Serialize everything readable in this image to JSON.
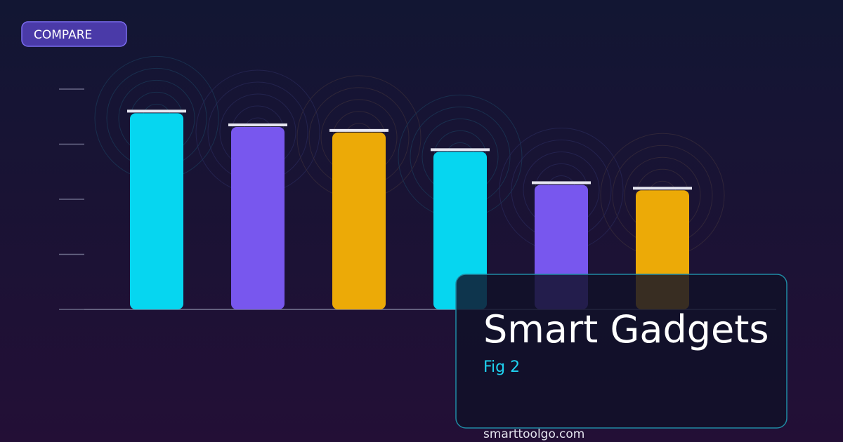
{
  "badge": "COMPARE",
  "chart_data": {
    "type": "bar",
    "title": "Smart Gadgets",
    "subtitle": "Fig 2",
    "categories": [
      null,
      null,
      null,
      null,
      null,
      null
    ],
    "values": [
      3.6,
      3.35,
      3.25,
      2.9,
      2.3,
      2.2
    ],
    "colors": [
      "#06d6f0",
      "#7857ee",
      "#ecaa07",
      "#06d6f0",
      "#7857ee",
      "#ecaa07"
    ],
    "ylim": [
      0,
      4
    ],
    "yticks": [
      0,
      1,
      2,
      3,
      4
    ]
  },
  "footer": "smarttoolgo.com"
}
